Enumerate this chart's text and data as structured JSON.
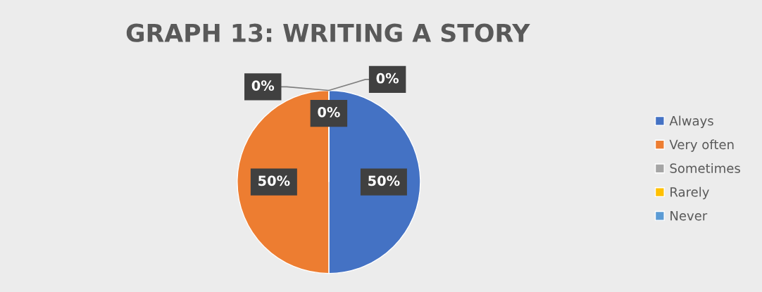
{
  "chart_data": {
    "type": "pie",
    "title": "GRAPH 13: WRITING A STORY",
    "categories": [
      "Always",
      "Very often",
      "Sometimes",
      "Rarely",
      "Never"
    ],
    "values": [
      50,
      50,
      0,
      0,
      0
    ],
    "colors": [
      "#4472c4",
      "#ed7d31",
      "#a5a5a5",
      "#ffc000",
      "#5b9bd5"
    ],
    "value_labels": [
      "50%",
      "50%",
      "0%",
      "0%",
      "0%"
    ],
    "legend": "right"
  }
}
